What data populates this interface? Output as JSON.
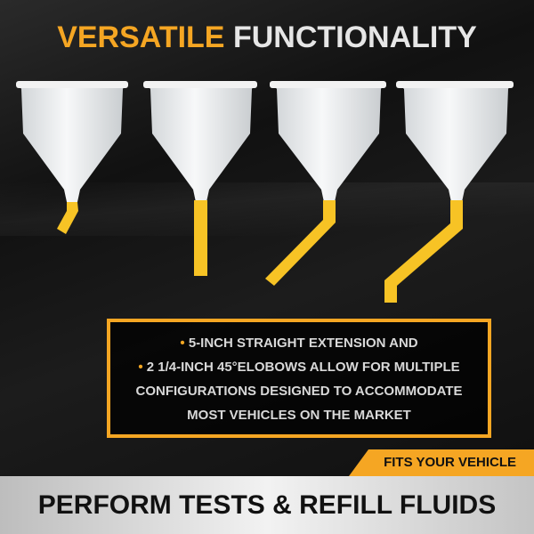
{
  "title": {
    "highlight": "VERSATILE",
    "rest": "FUNCTIONALITY"
  },
  "features": {
    "line1": "5-INCH STRAIGHT EXTENSION AND",
    "line2": "2 1/4-INCH 45°ELOBOWS ALLOW FOR MULTIPLE",
    "line3": "CONFIGURATIONS DESIGNED TO ACCOMMODATE",
    "line4": "MOST VEHICLES ON THE MARKET"
  },
  "tab_label": "FITS YOUR VEHICLE",
  "bottom_banner": "PERFORM TESTS & REFILL FLUIDS",
  "colors": {
    "accent": "#f5a623",
    "funnel": "#e9ecef",
    "spout": "#f7c325"
  }
}
